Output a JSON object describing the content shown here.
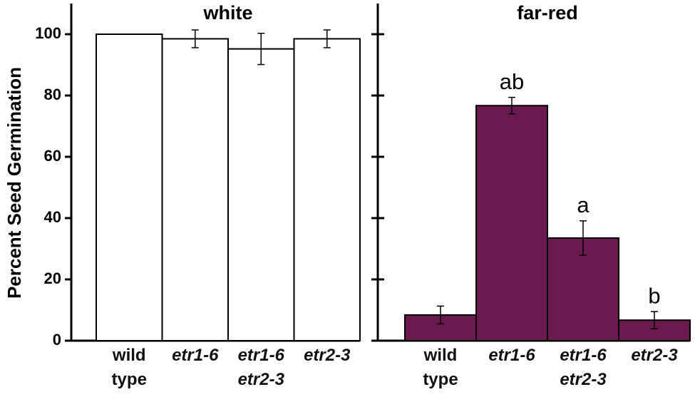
{
  "chart_data": [
    {
      "type": "bar",
      "title": "white",
      "ylabel": "Percent Seed Germination",
      "categories": [
        "wild type",
        "etr1-6",
        "etr1-6 etr2-3",
        "etr2-3"
      ],
      "italic": [
        false,
        true,
        true,
        true
      ],
      "values": [
        100,
        98.5,
        95.2,
        98.5
      ],
      "errors": [
        null,
        2.9,
        5.1,
        2.9
      ],
      "annotations": [
        null,
        null,
        null,
        null
      ],
      "color": "#ffffff",
      "ylim": [
        0,
        110
      ],
      "yticks": [
        0,
        20,
        40,
        60,
        80,
        100
      ]
    },
    {
      "type": "bar",
      "title": "far-red",
      "categories": [
        "wild type",
        "etr1-6",
        "etr1-6 etr2-3",
        "etr2-3"
      ],
      "italic": [
        false,
        true,
        true,
        true
      ],
      "values": [
        8.4,
        76.7,
        33.5,
        6.7
      ],
      "errors": [
        2.9,
        2.7,
        5.6,
        2.8
      ],
      "annotations": [
        null,
        "ab",
        "a",
        "b"
      ],
      "color": "#6b1a4f",
      "ylim": [
        0,
        110
      ],
      "yticks": [
        0,
        20,
        40,
        60,
        80,
        100
      ]
    }
  ]
}
